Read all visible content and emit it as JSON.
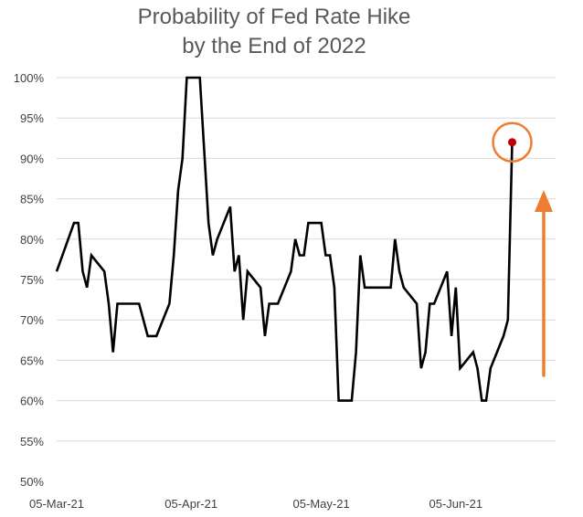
{
  "chart_data": {
    "type": "line",
    "title": [
      "Probability of Fed Rate Hike",
      "by the End of 2022"
    ],
    "xlabel": "",
    "ylabel": "",
    "ylim": [
      50,
      100
    ],
    "y_ticks": [
      "100%",
      "95%",
      "90%",
      "85%",
      "80%",
      "75%",
      "70%",
      "65%",
      "60%",
      "55%",
      "50%"
    ],
    "x_ticks": [
      "05-Mar-21",
      "05-Apr-21",
      "05-May-21",
      "05-Jun-21"
    ],
    "xlim": [
      "2021-03-05",
      "2021-06-28"
    ],
    "grid": true,
    "legend": "none",
    "series": [
      {
        "color": "#000000",
        "points": [
          [
            "2021-03-05",
            76
          ],
          [
            "2021-03-09",
            82
          ],
          [
            "2021-03-10",
            82
          ],
          [
            "2021-03-11",
            76
          ],
          [
            "2021-03-12",
            74
          ],
          [
            "2021-03-13",
            78
          ],
          [
            "2021-03-16",
            76
          ],
          [
            "2021-03-17",
            72
          ],
          [
            "2021-03-18",
            66
          ],
          [
            "2021-03-19",
            72
          ],
          [
            "2021-03-24",
            72
          ],
          [
            "2021-03-26",
            68
          ],
          [
            "2021-03-28",
            68
          ],
          [
            "2021-03-31",
            72
          ],
          [
            "2021-04-01",
            78
          ],
          [
            "2021-04-02",
            86
          ],
          [
            "2021-04-03",
            90
          ],
          [
            "2021-04-04",
            100
          ],
          [
            "2021-04-07",
            100
          ],
          [
            "2021-04-09",
            82
          ],
          [
            "2021-04-10",
            78
          ],
          [
            "2021-04-11",
            80
          ],
          [
            "2021-04-14",
            84
          ],
          [
            "2021-04-15",
            76
          ],
          [
            "2021-04-16",
            78
          ],
          [
            "2021-04-17",
            70
          ],
          [
            "2021-04-18",
            76
          ],
          [
            "2021-04-21",
            74
          ],
          [
            "2021-04-22",
            68
          ],
          [
            "2021-04-23",
            72
          ],
          [
            "2021-04-25",
            72
          ],
          [
            "2021-04-28",
            76
          ],
          [
            "2021-04-29",
            80
          ],
          [
            "2021-04-30",
            78
          ],
          [
            "2021-05-01",
            78
          ],
          [
            "2021-05-02",
            82
          ],
          [
            "2021-05-05",
            82
          ],
          [
            "2021-05-06",
            78
          ],
          [
            "2021-05-07",
            78
          ],
          [
            "2021-05-08",
            74
          ],
          [
            "2021-05-09",
            60
          ],
          [
            "2021-05-12",
            60
          ],
          [
            "2021-05-13",
            66
          ],
          [
            "2021-05-14",
            78
          ],
          [
            "2021-05-15",
            74
          ],
          [
            "2021-05-21",
            74
          ],
          [
            "2021-05-22",
            80
          ],
          [
            "2021-05-23",
            76
          ],
          [
            "2021-05-24",
            74
          ],
          [
            "2021-05-27",
            72
          ],
          [
            "2021-05-28",
            64
          ],
          [
            "2021-05-29",
            66
          ],
          [
            "2021-05-30",
            72
          ],
          [
            "2021-05-31",
            72
          ],
          [
            "2021-06-03",
            76
          ],
          [
            "2021-06-04",
            68
          ],
          [
            "2021-06-05",
            74
          ],
          [
            "2021-06-06",
            64
          ],
          [
            "2021-06-09",
            66
          ],
          [
            "2021-06-10",
            64
          ],
          [
            "2021-06-11",
            60
          ],
          [
            "2021-06-12",
            60
          ],
          [
            "2021-06-13",
            64
          ],
          [
            "2021-06-16",
            68
          ],
          [
            "2021-06-17",
            70
          ],
          [
            "2021-06-18",
            92
          ]
        ]
      }
    ],
    "annotations": {
      "highlight_point": [
        "2021-06-18",
        92
      ],
      "marker_color": "#c00000",
      "circle_color": "#ed7d31",
      "arrow_color": "#ed7d31",
      "arrow_direction": "up"
    }
  }
}
